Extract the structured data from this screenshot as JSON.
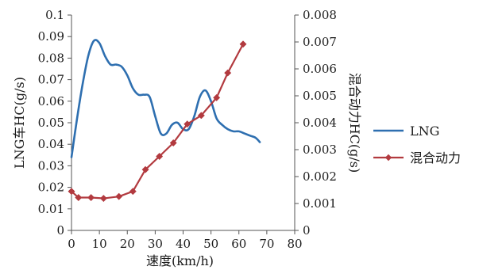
{
  "chart_data": {
    "type": "line",
    "title": "",
    "xlabel": "速度(km/h)",
    "ylabel_left": "LNG车HC(g/s)",
    "ylabel_right": "混合动力HC(g/s)",
    "xlim": [
      0,
      80
    ],
    "ylim_left": [
      0,
      0.1
    ],
    "ylim_right": [
      0,
      0.008
    ],
    "x_ticks": [
      "0",
      "10",
      "20",
      "30",
      "40",
      "50",
      "60",
      "70",
      "80"
    ],
    "y_ticks_left": [
      "0",
      "0.01",
      "0.02",
      "0.03",
      "0.04",
      "0.05",
      "0.06",
      "0.07",
      "0.08",
      "0.09",
      "0.1"
    ],
    "y_ticks_right": [
      "0",
      "0.001",
      "0.002",
      "0.003",
      "0.004",
      "0.005",
      "0.006",
      "0.007",
      "0.008"
    ],
    "grid": false,
    "legend_position": "right",
    "series": [
      {
        "name": "LNG",
        "axis": "left",
        "color": "#2e6fb0",
        "marker": "none",
        "x": [
          0,
          2,
          4,
          6,
          8,
          10,
          12,
          14,
          16,
          18,
          20,
          22,
          24,
          26,
          28,
          30,
          32,
          34,
          36,
          38,
          40,
          42,
          44,
          46,
          48,
          50,
          52,
          54,
          56,
          58,
          60,
          62,
          64,
          66,
          67.5
        ],
        "y": [
          0.034,
          0.052,
          0.068,
          0.081,
          0.088,
          0.087,
          0.081,
          0.077,
          0.077,
          0.076,
          0.072,
          0.066,
          0.063,
          0.063,
          0.062,
          0.053,
          0.045,
          0.045,
          0.049,
          0.05,
          0.047,
          0.047,
          0.053,
          0.062,
          0.065,
          0.06,
          0.052,
          0.049,
          0.047,
          0.046,
          0.046,
          0.045,
          0.044,
          0.043,
          0.041
        ]
      },
      {
        "name": "混合动力",
        "axis": "right",
        "color": "#b23a3f",
        "marker": "diamond",
        "x": [
          0,
          2.5,
          7,
          11.5,
          17,
          22,
          26.5,
          31.5,
          36.5,
          41.5,
          46.5,
          52,
          56,
          61.5
        ],
        "y": [
          0.00145,
          0.00122,
          0.00122,
          0.00119,
          0.00126,
          0.00145,
          0.00226,
          0.00275,
          0.00325,
          0.00395,
          0.00427,
          0.00493,
          0.00585,
          0.00692
        ]
      }
    ]
  }
}
